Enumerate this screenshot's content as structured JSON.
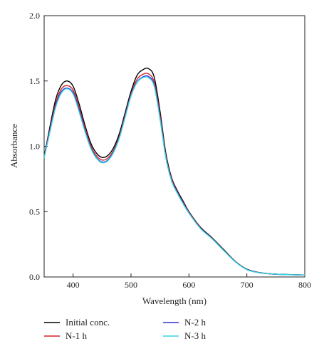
{
  "chart_data": {
    "type": "line",
    "title": "",
    "xlabel": "Wavelength (nm)",
    "ylabel": "Absorbance",
    "xlim": [
      350,
      800
    ],
    "ylim": [
      0,
      2.0
    ],
    "xticks": [
      400,
      500,
      600,
      700,
      800
    ],
    "yticks": [
      0.0,
      0.5,
      1.0,
      1.5,
      2.0
    ],
    "xtick_labels": [
      "400",
      "500",
      "600",
      "700",
      "800"
    ],
    "ytick_labels": [
      "0.0",
      "0.5",
      "1.0",
      "1.5",
      "2.0"
    ],
    "grid": false,
    "legend_position": "bottom",
    "series": [
      {
        "name": "Initial conc.",
        "color": "#000000",
        "x": [
          350,
          360,
          370,
          380,
          390,
          400,
          410,
          420,
          430,
          440,
          450,
          460,
          470,
          480,
          490,
          500,
          510,
          520,
          530,
          540,
          550,
          560,
          570,
          580,
          590,
          600,
          620,
          640,
          660,
          680,
          700,
          720,
          740,
          760,
          780,
          800
        ],
        "y": [
          0.92,
          1.15,
          1.36,
          1.47,
          1.5,
          1.46,
          1.33,
          1.17,
          1.03,
          0.95,
          0.915,
          0.93,
          0.99,
          1.1,
          1.26,
          1.42,
          1.54,
          1.585,
          1.595,
          1.53,
          1.27,
          0.95,
          0.76,
          0.66,
          0.58,
          0.5,
          0.38,
          0.3,
          0.21,
          0.12,
          0.06,
          0.035,
          0.025,
          0.02,
          0.018,
          0.015
        ]
      },
      {
        "name": "N-1 h",
        "color": "#d2232a",
        "x": [
          350,
          360,
          370,
          380,
          390,
          400,
          410,
          420,
          430,
          440,
          450,
          460,
          470,
          480,
          490,
          500,
          510,
          520,
          530,
          540,
          550,
          560,
          570,
          580,
          590,
          600,
          620,
          640,
          660,
          680,
          700,
          720,
          740,
          760,
          780,
          800
        ],
        "y": [
          0.92,
          1.13,
          1.33,
          1.44,
          1.465,
          1.43,
          1.3,
          1.15,
          1.01,
          0.93,
          0.895,
          0.91,
          0.97,
          1.08,
          1.24,
          1.4,
          1.51,
          1.55,
          1.555,
          1.49,
          1.24,
          0.93,
          0.75,
          0.65,
          0.57,
          0.495,
          0.375,
          0.295,
          0.205,
          0.118,
          0.058,
          0.034,
          0.024,
          0.019,
          0.017,
          0.015
        ]
      },
      {
        "name": "N-2 h",
        "color": "#2b2fd6",
        "x": [
          350,
          360,
          370,
          380,
          390,
          400,
          410,
          420,
          430,
          440,
          450,
          460,
          470,
          480,
          490,
          500,
          510,
          520,
          530,
          540,
          550,
          560,
          570,
          580,
          590,
          600,
          620,
          640,
          660,
          680,
          700,
          720,
          740,
          760,
          780,
          800
        ],
        "y": [
          0.915,
          1.12,
          1.31,
          1.42,
          1.445,
          1.41,
          1.28,
          1.13,
          0.995,
          0.915,
          0.88,
          0.895,
          0.96,
          1.07,
          1.23,
          1.39,
          1.49,
          1.53,
          1.535,
          1.47,
          1.22,
          0.92,
          0.74,
          0.645,
          0.565,
          0.49,
          0.372,
          0.293,
          0.203,
          0.117,
          0.057,
          0.034,
          0.024,
          0.019,
          0.017,
          0.015
        ]
      },
      {
        "name": "N-3 h",
        "color": "#35d6e4",
        "x": [
          350,
          360,
          370,
          380,
          390,
          400,
          410,
          420,
          430,
          440,
          450,
          460,
          470,
          480,
          490,
          500,
          510,
          520,
          530,
          540,
          550,
          560,
          570,
          580,
          590,
          600,
          620,
          640,
          660,
          680,
          700,
          720,
          740,
          760,
          780,
          800
        ],
        "y": [
          0.91,
          1.11,
          1.3,
          1.41,
          1.44,
          1.4,
          1.27,
          1.12,
          0.99,
          0.91,
          0.875,
          0.89,
          0.955,
          1.065,
          1.225,
          1.385,
          1.485,
          1.525,
          1.525,
          1.46,
          1.21,
          0.915,
          0.735,
          0.64,
          0.56,
          0.488,
          0.37,
          0.292,
          0.202,
          0.116,
          0.056,
          0.033,
          0.024,
          0.019,
          0.017,
          0.015
        ]
      }
    ]
  }
}
